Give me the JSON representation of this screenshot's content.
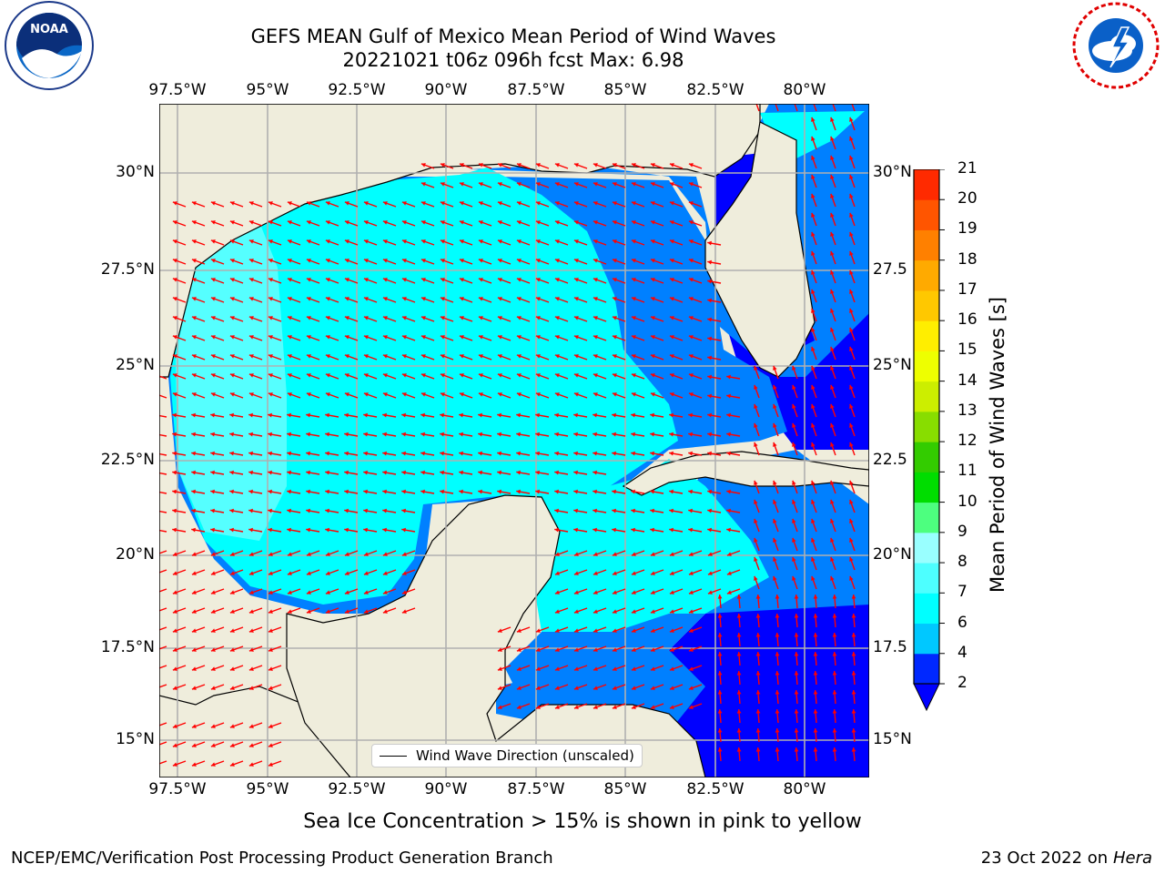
{
  "title": {
    "line1": "GEFS MEAN Gulf of Mexico Mean Period of Wind Waves",
    "line2": "20221021 t06z 096h fcst   Max: 6.98"
  },
  "axes": {
    "lon_labels": [
      "97.5°W",
      "95°W",
      "92.5°W",
      "90°W",
      "87.5°W",
      "85°W",
      "82.5°W",
      "80°W"
    ],
    "lat_labels_left": [
      "30°N",
      "27.5°N",
      "25°N",
      "22.5°N",
      "20°N",
      "17.5°N",
      "15°N"
    ],
    "lat_labels_right": [
      "30°N",
      "27.5",
      "25°N",
      "22.5",
      "20°N",
      "17.5",
      "15°N"
    ]
  },
  "colorbar": {
    "title": "Mean Period of Wind Waves [s]",
    "levels": [
      "2",
      "4",
      "6",
      "7",
      "8",
      "9",
      "10",
      "11",
      "12",
      "13",
      "14",
      "15",
      "16",
      "17",
      "18",
      "19",
      "20",
      "21"
    ],
    "colors": [
      "#0028ff",
      "#00c8ff",
      "#00ffff",
      "#4dffff",
      "#99ffff",
      "#4dff7f",
      "#00dd00",
      "#33cc00",
      "#88dd00",
      "#ccee00",
      "#eeff00",
      "#ffee00",
      "#ffc800",
      "#ffaa00",
      "#ff8000",
      "#ff5500",
      "#ff2a00",
      "#ff0000"
    ],
    "under_color": "#0000ff"
  },
  "legend": {
    "label": "Wind Wave Direction (unscaled)"
  },
  "note": "Sea Ice Concentration > 15% is shown in pink to yellow",
  "footer": {
    "left": "NCEP/EMC/Verification Post Processing Product Generation Branch",
    "right_date": "23 Oct 2022 on ",
    "right_host": "Hera"
  },
  "map": {
    "colors": {
      "land": "#efeddc",
      "water_lt": "#00ffff",
      "water_pale": "#55ffff",
      "water_mid": "#0080ff",
      "water_dark": "#0000ff",
      "arrow": "#ff0000",
      "grid": "#b0b0b0"
    }
  },
  "logos": {
    "left": "noa-logo-icon",
    "right": "nws-logo-icon"
  }
}
